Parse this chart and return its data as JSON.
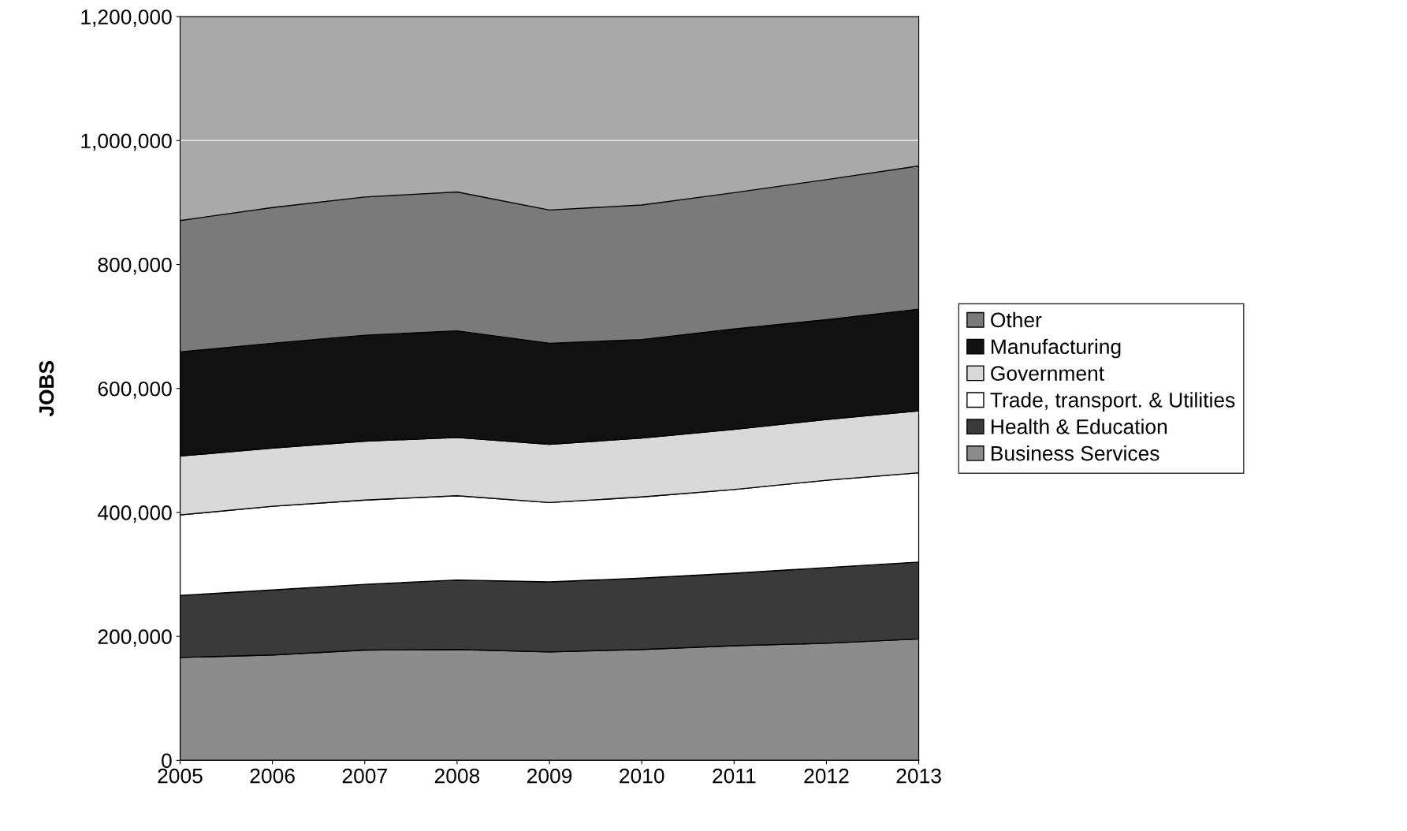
{
  "chart_data": {
    "type": "area",
    "stacked": true,
    "ylabel": "JOBS",
    "x": [
      2005,
      2006,
      2007,
      2008,
      2009,
      2010,
      2011,
      2012,
      2013
    ],
    "xlim": [
      2005,
      2013
    ],
    "xticks": [
      2005,
      2006,
      2007,
      2008,
      2009,
      2010,
      2011,
      2012,
      2013
    ],
    "ylim": [
      0,
      1200000
    ],
    "yticks": [
      {
        "value": 0,
        "label": "0"
      },
      {
        "value": 200000,
        "label": "200,000"
      },
      {
        "value": 400000,
        "label": "400,000"
      },
      {
        "value": 600000,
        "label": "600,000"
      },
      {
        "value": 800000,
        "label": "800,000"
      },
      {
        "value": 1000000,
        "label": "1,000,000"
      },
      {
        "value": 1200000,
        "label": "1,200,000"
      }
    ],
    "grid": "y",
    "legend": "right",
    "series": [
      {
        "name": "Business Services",
        "color": "#8c8c8c",
        "values": [
          166000,
          170000,
          178000,
          179000,
          175000,
          179000,
          185000,
          189000,
          196000
        ]
      },
      {
        "name": "Health & Education",
        "color": "#3a3a3a",
        "values": [
          100000,
          105000,
          106000,
          112000,
          113000,
          115000,
          117000,
          122000,
          124000
        ]
      },
      {
        "name": "Trade, transport. & Utilities",
        "color": "#ffffff",
        "values": [
          130000,
          135000,
          136000,
          136000,
          128000,
          131000,
          135000,
          141000,
          144000
        ]
      },
      {
        "name": "Government",
        "color": "#d9d9d9",
        "values": [
          95000,
          94000,
          95000,
          94000,
          94000,
          95000,
          97000,
          98000,
          100000
        ]
      },
      {
        "name": "Manufacturing",
        "color": "#111111",
        "values": [
          168000,
          169000,
          171000,
          172000,
          163000,
          159000,
          162000,
          161000,
          164000
        ]
      },
      {
        "name": "Other",
        "color": "#7a7a7a",
        "values": [
          212000,
          219000,
          223000,
          224000,
          215000,
          217000,
          220000,
          226000,
          231000
        ]
      }
    ]
  }
}
